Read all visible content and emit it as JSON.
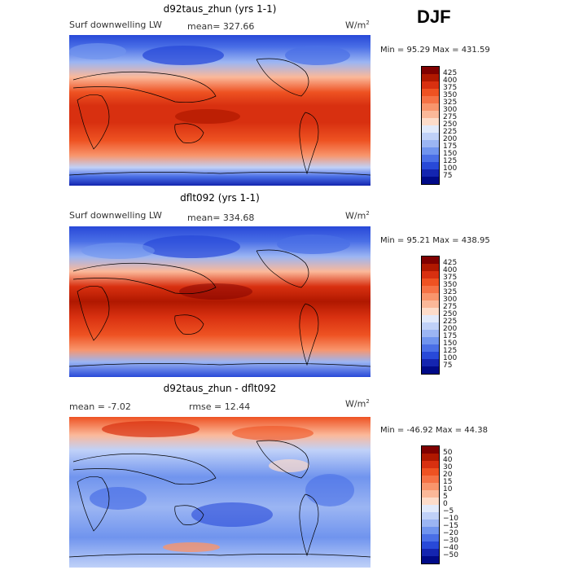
{
  "season": "DJF",
  "chart_data": [
    {
      "type": "heatmap",
      "title": "d92taus_zhun (yrs 1-1)",
      "variable": "Surf downwelling LW",
      "stat_text": "mean= 327.66",
      "units_text": "W/m",
      "units_exp": "2",
      "minmax_text": "Min =  95.29 Max = 431.59",
      "levels": [
        "425",
        "400",
        "375",
        "350",
        "325",
        "300",
        "275",
        "250",
        "225",
        "200",
        "175",
        "150",
        "125",
        "100",
        "75"
      ],
      "colors": [
        "#800000",
        "#b01800",
        "#d83010",
        "#ee5222",
        "#f57245",
        "#f8956c",
        "#fbb899",
        "#fddcca",
        "#e2eafb",
        "#c0d1f8",
        "#9bb5f3",
        "#7094ee",
        "#4a6fe6",
        "#2849d8",
        "#1425b0",
        "#000a88"
      ]
    },
    {
      "type": "heatmap",
      "title": "dflt092 (yrs 1-1)",
      "variable": "Surf downwelling LW",
      "stat_text": "mean= 334.68",
      "units_text": "W/m",
      "units_exp": "2",
      "minmax_text": "Min =  95.21 Max = 438.95",
      "levels": [
        "425",
        "400",
        "375",
        "350",
        "325",
        "300",
        "275",
        "250",
        "225",
        "200",
        "175",
        "150",
        "125",
        "100",
        "75"
      ],
      "colors": [
        "#800000",
        "#b01800",
        "#d83010",
        "#ee5222",
        "#f57245",
        "#f8956c",
        "#fbb899",
        "#fddcca",
        "#e2eafb",
        "#c0d1f8",
        "#9bb5f3",
        "#7094ee",
        "#4a6fe6",
        "#2849d8",
        "#1425b0",
        "#000a88"
      ]
    },
    {
      "type": "heatmap",
      "title": "d92taus_zhun - dflt092",
      "stat_text": "mean =   -7.02",
      "rmse_text": "rmse =   12.44",
      "units_text": "W/m",
      "units_exp": "2",
      "minmax_text": "Min = -46.92 Max =   44.38",
      "levels": [
        "50",
        "40",
        "30",
        "20",
        "15",
        "10",
        "5",
        "0",
        "−5",
        "−10",
        "−15",
        "−20",
        "−30",
        "−40",
        "−50"
      ],
      "colors": [
        "#800000",
        "#b01800",
        "#d83010",
        "#ee5222",
        "#f57245",
        "#f8956c",
        "#fbb899",
        "#fddcca",
        "#e2eafb",
        "#c0d1f8",
        "#9bb5f3",
        "#7094ee",
        "#4a6fe6",
        "#2849d8",
        "#1425b0",
        "#000a88"
      ]
    }
  ]
}
